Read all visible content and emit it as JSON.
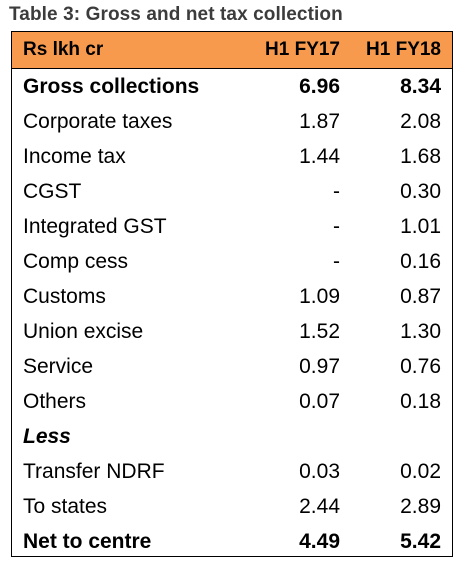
{
  "caption": "Table 3: Gross and net tax collection",
  "header": {
    "label": "Rs lkh cr",
    "col1": "H1 FY17",
    "col2": "H1 FY18"
  },
  "rows": [
    {
      "label": "Gross collections",
      "v1": "6.96",
      "v2": "8.34",
      "style": "bold"
    },
    {
      "label": "Corporate taxes",
      "v1": "1.87",
      "v2": "2.08",
      "style": "normal"
    },
    {
      "label": "Income tax",
      "v1": "1.44",
      "v2": "1.68",
      "style": "normal"
    },
    {
      "label": "CGST",
      "v1": "-",
      "v2": "0.30",
      "style": "normal"
    },
    {
      "label": "Integrated GST",
      "v1": "-",
      "v2": "1.01",
      "style": "normal"
    },
    {
      "label": "Comp cess",
      "v1": "-",
      "v2": "0.16",
      "style": "normal"
    },
    {
      "label": "Customs",
      "v1": "1.09",
      "v2": "0.87",
      "style": "normal"
    },
    {
      "label": "Union excise",
      "v1": "1.52",
      "v2": "1.30",
      "style": "normal"
    },
    {
      "label": "Service",
      "v1": "0.97",
      "v2": "0.76",
      "style": "normal"
    },
    {
      "label": "Others",
      "v1": "0.07",
      "v2": "0.18",
      "style": "normal"
    },
    {
      "label": "Less",
      "v1": "",
      "v2": "",
      "style": "italic-bold"
    },
    {
      "label": "Transfer NDRF",
      "v1": "0.03",
      "v2": "0.02",
      "style": "normal"
    },
    {
      "label": "To states",
      "v1": "2.44",
      "v2": "2.89",
      "style": "normal"
    },
    {
      "label": "Net to centre",
      "v1": "4.49",
      "v2": "5.42",
      "style": "bold"
    }
  ],
  "colors": {
    "header_bg": "#f79a4d",
    "caption_text": "#3c3c3c"
  }
}
